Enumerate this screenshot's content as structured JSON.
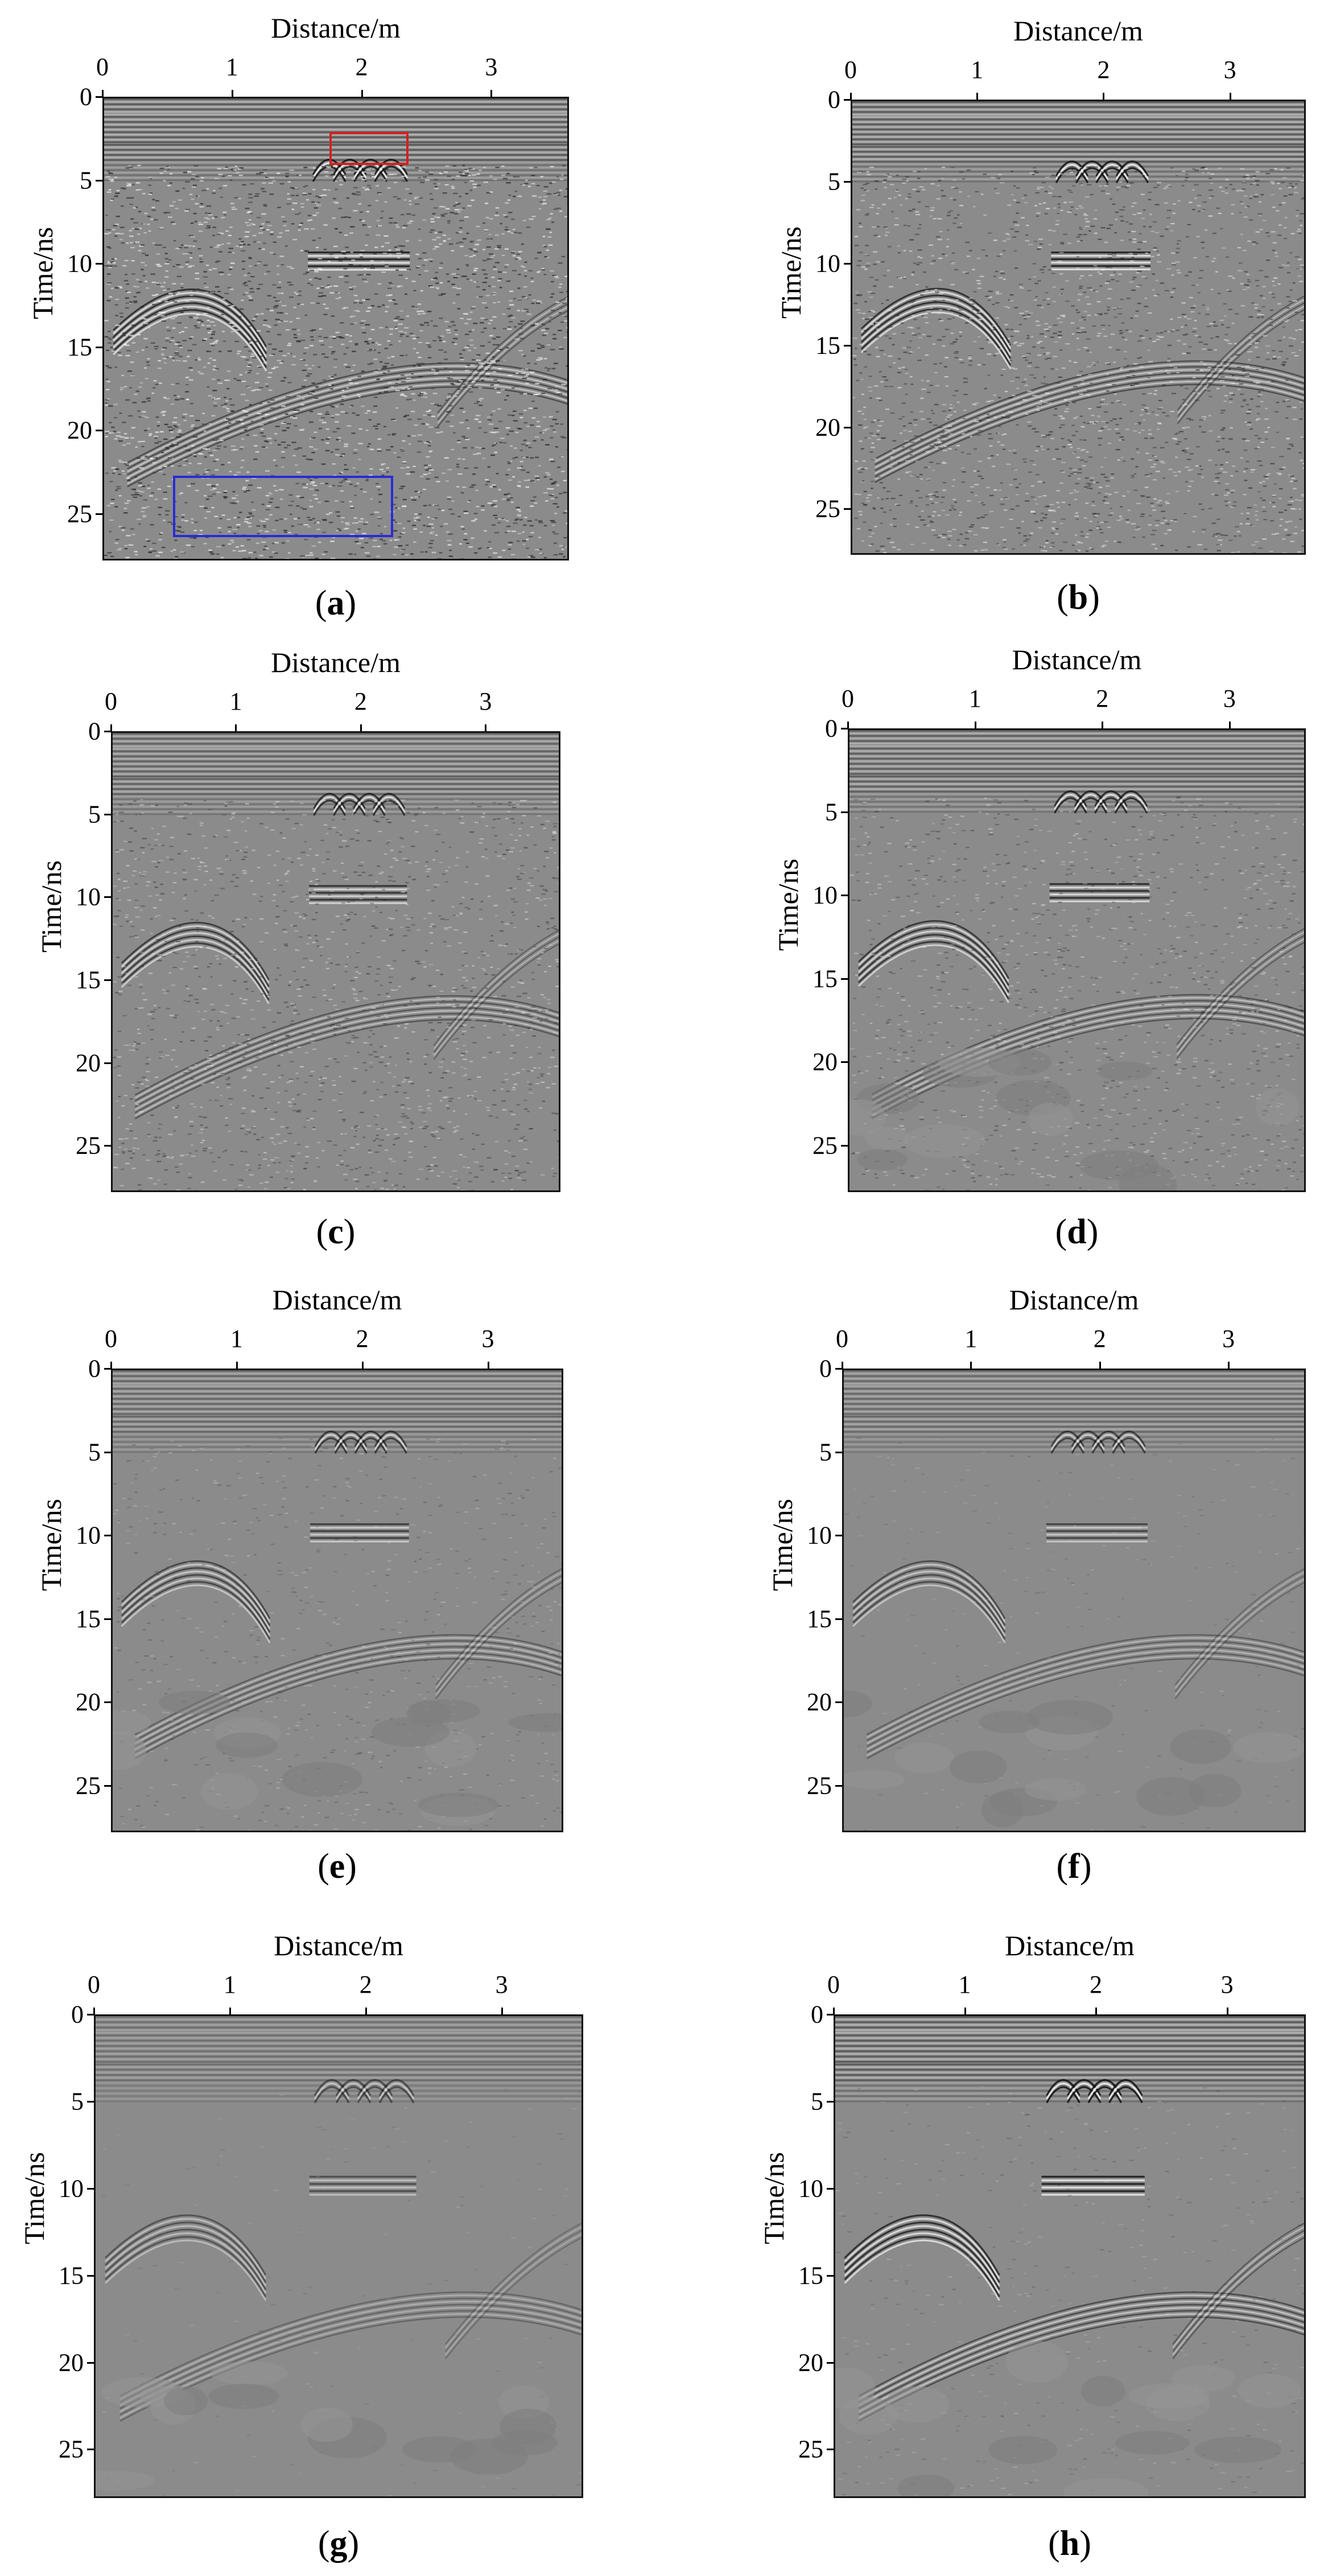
{
  "axis": {
    "xlabel": "Distance/m",
    "ylabel": "Time/ns",
    "xticks": [
      "0",
      "1",
      "2",
      "3"
    ],
    "xtick_values": [
      0,
      1,
      2,
      3
    ],
    "xlim": [
      0,
      3.6
    ],
    "yticks": [
      "0",
      "5",
      "10",
      "15",
      "20",
      "25"
    ],
    "ytick_values": [
      0,
      5,
      10,
      15,
      20,
      25
    ],
    "ylim": [
      0,
      27.8
    ]
  },
  "panels": [
    {
      "id": "a",
      "caption_open": "(",
      "caption_letter": "a",
      "caption_close": ")",
      "noise": 1.0,
      "signal": 1.0
    },
    {
      "id": "b",
      "caption_open": "(",
      "caption_letter": "b",
      "caption_close": ")",
      "noise": 0.75,
      "signal": 1.0
    },
    {
      "id": "c",
      "caption_open": "(",
      "caption_letter": "c",
      "caption_close": ")",
      "noise": 0.55,
      "signal": 0.85
    },
    {
      "id": "d",
      "caption_open": "(",
      "caption_letter": "d",
      "caption_close": ")",
      "noise": 0.45,
      "signal": 0.9
    },
    {
      "id": "e",
      "caption_open": "(",
      "caption_letter": "e",
      "caption_close": ")",
      "noise": 0.25,
      "signal": 0.75
    },
    {
      "id": "f",
      "caption_open": "(",
      "caption_letter": "f",
      "caption_close": ")",
      "noise": 0.1,
      "signal": 0.7
    },
    {
      "id": "g",
      "caption_open": "(",
      "caption_letter": "g",
      "caption_close": ")",
      "noise": 0.05,
      "signal": 0.6
    },
    {
      "id": "h",
      "caption_open": "(",
      "caption_letter": "h",
      "caption_close": ")",
      "noise": 0.15,
      "signal": 1.0
    }
  ],
  "highlights": {
    "red_box_color": "#d42020",
    "blue_box_color": "#2a2ad8"
  }
}
